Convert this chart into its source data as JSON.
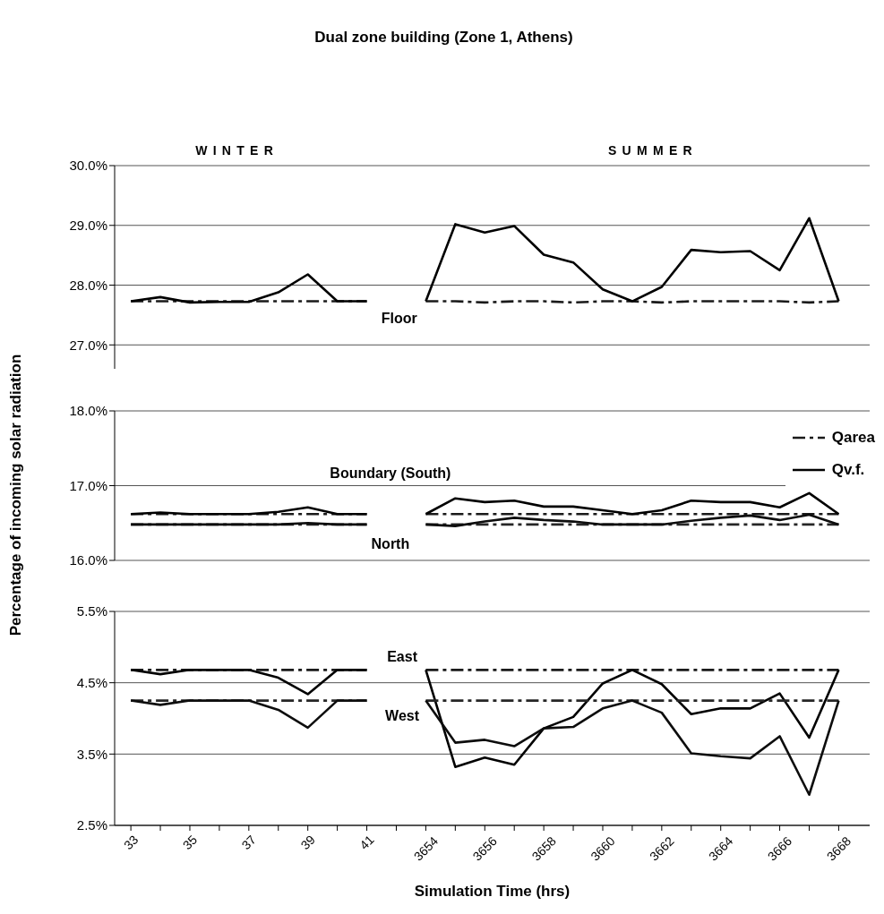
{
  "chart_data": [
    {
      "type": "line",
      "title": "Dual zone building (Zone 1, Athens)",
      "categories": [
        "33",
        null,
        "35",
        null,
        "37",
        null,
        "39",
        null,
        "41",
        null,
        "3654",
        null,
        "3656",
        null,
        "3658",
        null,
        "3660",
        null,
        "3662",
        null,
        "3664",
        null,
        "3666",
        null,
        "3668"
      ],
      "series": [
        {
          "color": "#1a1a1a",
          "line_style": "dashed",
          "values": [
            27.73,
            27.73,
            27.73,
            27.73,
            27.73,
            27.73,
            27.73,
            27.73,
            27.73,
            null,
            27.73,
            27.73,
            27.71,
            27.73,
            27.73,
            27.71,
            27.73,
            27.73,
            27.71,
            27.73,
            27.73,
            27.73,
            27.73,
            27.71,
            27.73
          ]
        },
        {
          "color": "#000000",
          "line_style": "solid",
          "values": [
            27.73,
            27.8,
            27.71,
            27.72,
            27.72,
            27.88,
            28.18,
            27.73,
            27.73,
            null,
            27.73,
            29.02,
            28.88,
            28.99,
            28.51,
            28.38,
            27.93,
            27.73,
            27.97,
            28.59,
            28.55,
            28.57,
            28.25,
            29.12,
            27.73
          ]
        }
      ],
      "ylim": [
        26.6,
        30
      ],
      "yticks": [
        {
          "value": 27,
          "label": "27.0%"
        },
        {
          "value": 28,
          "label": "28.0%"
        },
        {
          "value": 29,
          "label": "29.0%"
        },
        {
          "value": 30,
          "label": "30.0%"
        }
      ],
      "grid": "y",
      "tick_labels": "y",
      "annotations": [
        "WINTER",
        "SUMMER",
        "Floor"
      ]
    },
    {
      "type": "line",
      "ylabel": "Percentage of incoming solar radiation",
      "categories": [
        "33",
        null,
        "35",
        null,
        "37",
        null,
        "39",
        null,
        "41",
        null,
        "3654",
        null,
        "3656",
        null,
        "3658",
        null,
        "3660",
        null,
        "3662",
        null,
        "3664",
        null,
        "3666",
        null,
        "3668"
      ],
      "series": [
        {
          "name": "Qarea",
          "color": "#1a1a1a",
          "line_style": "dashed",
          "values": [
            16.62,
            16.62,
            16.62,
            16.62,
            16.62,
            16.62,
            16.62,
            16.62,
            16.62,
            null,
            16.62,
            16.62,
            16.62,
            16.62,
            16.62,
            16.62,
            16.62,
            16.62,
            16.62,
            16.62,
            16.62,
            16.62,
            16.62,
            16.62,
            16.62
          ]
        },
        {
          "name": "Qv.f.",
          "color": "#000000",
          "line_style": "solid",
          "values": [
            16.62,
            16.64,
            16.62,
            16.62,
            16.62,
            16.65,
            16.71,
            16.62,
            16.62,
            null,
            16.62,
            16.83,
            16.78,
            16.8,
            16.72,
            16.72,
            16.67,
            16.62,
            16.67,
            16.8,
            16.78,
            16.78,
            16.71,
            16.9,
            16.62
          ]
        },
        {
          "color": "#262626",
          "line_style": "dashed",
          "values": [
            16.48,
            16.48,
            16.48,
            16.48,
            16.48,
            16.48,
            16.48,
            16.48,
            16.48,
            null,
            16.48,
            16.48,
            16.48,
            16.48,
            16.48,
            16.48,
            16.48,
            16.48,
            16.48,
            16.48,
            16.48,
            16.48,
            16.48,
            16.48,
            16.48
          ]
        },
        {
          "color": "#0d0d0d",
          "line_style": "solid",
          "values": [
            16.48,
            16.48,
            16.48,
            16.48,
            16.48,
            16.48,
            16.5,
            16.48,
            16.48,
            null,
            16.48,
            16.46,
            16.52,
            16.57,
            16.54,
            16.52,
            16.48,
            16.48,
            16.48,
            16.53,
            16.57,
            16.6,
            16.54,
            16.61,
            16.48
          ]
        }
      ],
      "ylim": [
        16,
        18
      ],
      "yticks": [
        {
          "value": 16,
          "label": "16.0%"
        },
        {
          "value": 17,
          "label": "17.0%"
        },
        {
          "value": 18,
          "label": "18.0%"
        }
      ],
      "grid": "y",
      "tick_labels": "y",
      "legend": "top right",
      "annotations": [
        "Boundary (South)",
        "North"
      ]
    },
    {
      "type": "line",
      "xlabel": "Simulation Time (hrs)",
      "categories": [
        "33",
        null,
        "35",
        null,
        "37",
        null,
        "39",
        null,
        "41",
        null,
        "3654",
        null,
        "3656",
        null,
        "3658",
        null,
        "3660",
        null,
        "3662",
        null,
        "3664",
        null,
        "3666",
        null,
        "3668"
      ],
      "series": [
        {
          "color": "#1a1a1a",
          "line_style": "dashed",
          "values": [
            4.68,
            4.68,
            4.68,
            4.68,
            4.68,
            4.68,
            4.68,
            4.68,
            4.68,
            null,
            4.68,
            4.68,
            4.68,
            4.68,
            4.68,
            4.68,
            4.68,
            4.68,
            4.68,
            4.68,
            4.68,
            4.68,
            4.68,
            4.68,
            4.68
          ]
        },
        {
          "color": "#000000",
          "line_style": "solid",
          "values": [
            4.68,
            4.62,
            4.68,
            4.68,
            4.68,
            4.57,
            4.34,
            4.68,
            4.68,
            null,
            4.68,
            3.32,
            3.45,
            3.35,
            3.86,
            4.02,
            4.49,
            4.68,
            4.48,
            4.06,
            4.14,
            4.14,
            4.35,
            3.73,
            4.68
          ]
        },
        {
          "color": "#262626",
          "line_style": "dashed",
          "values": [
            4.25,
            4.25,
            4.25,
            4.25,
            4.25,
            4.25,
            4.25,
            4.25,
            4.25,
            null,
            4.25,
            4.25,
            4.25,
            4.25,
            4.25,
            4.25,
            4.25,
            4.25,
            4.25,
            4.25,
            4.25,
            4.25,
            4.25,
            4.25,
            4.25
          ]
        },
        {
          "color": "#0d0d0d",
          "line_style": "solid",
          "values": [
            4.25,
            4.19,
            4.25,
            4.25,
            4.25,
            4.12,
            3.87,
            4.25,
            4.25,
            null,
            4.25,
            3.66,
            3.7,
            3.61,
            3.86,
            3.88,
            4.14,
            4.25,
            4.08,
            3.51,
            3.47,
            3.44,
            3.75,
            2.93,
            4.25
          ]
        }
      ],
      "ylim": [
        2.5,
        5.5
      ],
      "yticks": [
        {
          "value": 2.5,
          "label": "2.5%"
        },
        {
          "value": 3.5,
          "label": "3.5%"
        },
        {
          "value": 4.5,
          "label": "4.5%"
        },
        {
          "value": 5.5,
          "label": "5.5%"
        }
      ],
      "grid": "y",
      "annotations": [
        "East",
        "West"
      ]
    }
  ]
}
